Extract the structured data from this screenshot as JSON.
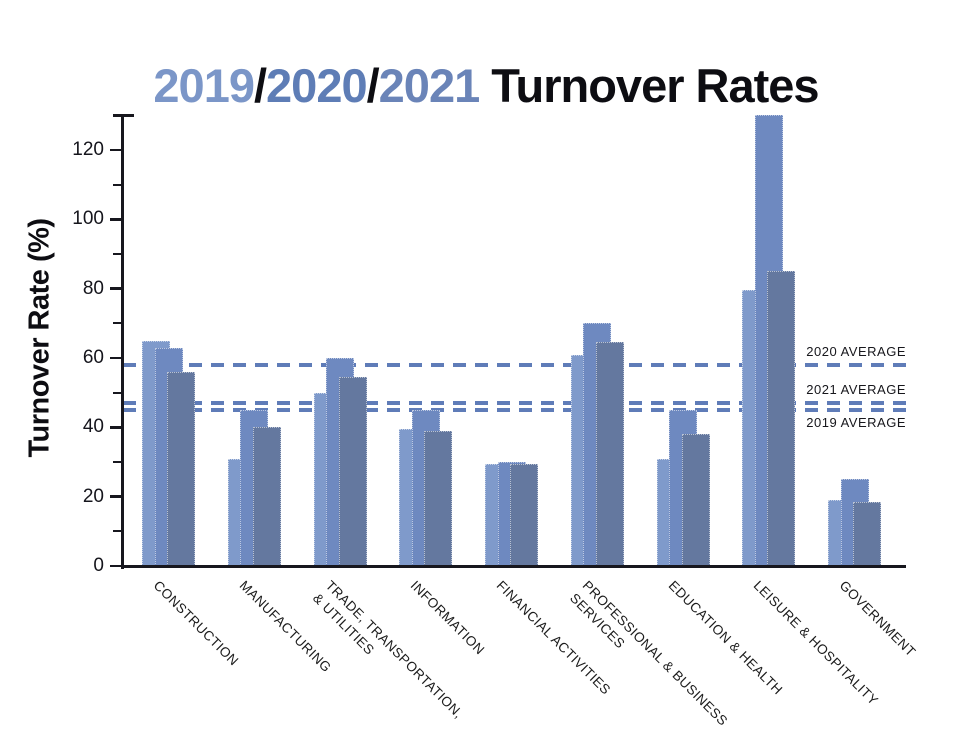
{
  "title": {
    "part_2019": "2019",
    "sep1": "/",
    "part_2020": "2020",
    "sep2": "/",
    "part_2021": "2021",
    "part_rest": " Turnover Rates"
  },
  "colors": {
    "title_2019": "#7b96c8",
    "title_2020": "#5e7db6",
    "title_2021": "#6a84b8",
    "title_text": "#0d0d12",
    "axis": "#17171e",
    "tick_text": "#15151c",
    "category_text": "#1c1c1c",
    "reference_line": "#5f7cb8",
    "reference_text": "#17171c"
  },
  "chart_data": {
    "type": "bar",
    "title": "2019/2020/2021 Turnover Rates",
    "xlabel": "",
    "ylabel": "Turnover Rate (%)",
    "ylim": [
      0,
      130
    ],
    "yticks_major": [
      0,
      20,
      40,
      60,
      80,
      100,
      120
    ],
    "yticks_minor": [
      10,
      30,
      50,
      70,
      90,
      110
    ],
    "grid": false,
    "legend_position": "none",
    "categories": [
      "CONSTRUCTION",
      "MANUFACTURING",
      "TRADE, TRANSPORTATION,\n& UTILITIES",
      "INFORMATION",
      "FINANCIAL ACTIVITIES",
      "PROFESSIONAL & BUSINESS\nSERVICES",
      "EDUCATION & HEALTH",
      "LEISURE & HOSPITALITY",
      "GOVERNMENT"
    ],
    "series": [
      {
        "name": "2019",
        "color": "#7f9acb",
        "values": [
          65,
          31,
          50,
          39.5,
          29.5,
          61,
          31,
          79.5,
          19
        ]
      },
      {
        "name": "2020",
        "color": "#6e89c0",
        "values": [
          63,
          45,
          60,
          45,
          30,
          70,
          45,
          130,
          25
        ]
      },
      {
        "name": "2021",
        "color": "#64789f",
        "values": [
          56,
          40,
          54.5,
          39,
          29.5,
          64.5,
          38,
          85,
          18.5
        ]
      }
    ],
    "reference_lines": [
      {
        "label": "2020 AVERAGE",
        "value": 58,
        "label_position": "above"
      },
      {
        "label": "2021 AVERAGE",
        "value": 47,
        "label_position": "above"
      },
      {
        "label": "2019 AVERAGE",
        "value": 45,
        "label_position": "below"
      }
    ]
  }
}
